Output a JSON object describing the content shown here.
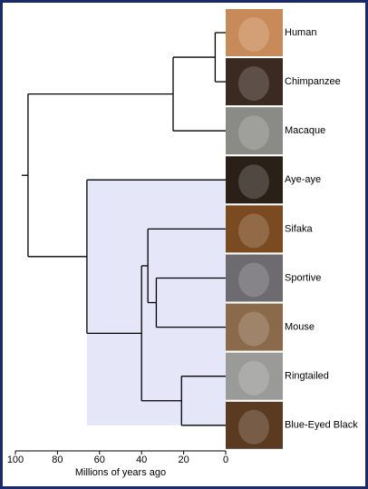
{
  "chart_data": {
    "type": "dendrogram",
    "xlabel": "Millions of years ago",
    "xlim": [
      100,
      0
    ],
    "xticks": [
      100,
      80,
      60,
      40,
      20,
      0
    ],
    "tree": {
      "age": 94,
      "children": [
        {
          "age": 25,
          "children": [
            {
              "age": 5,
              "children": [
                {
                  "name": "Human"
                },
                {
                  "name": "Chimpanzee"
                }
              ]
            },
            {
              "name": "Macaque"
            }
          ]
        },
        {
          "age": 66,
          "shade": "#e5e7f8",
          "children": [
            {
              "name": "Aye-aye"
            },
            {
              "age": 40,
              "children": [
                {
                  "age": 37,
                  "children": [
                    {
                      "name": "Sifaka"
                    },
                    {
                      "age": 33,
                      "children": [
                        {
                          "name": "Sportive"
                        },
                        {
                          "name": "Mouse"
                        }
                      ]
                    }
                  ]
                },
                {
                  "age": 21,
                  "children": [
                    {
                      "name": "Ringtailed"
                    },
                    {
                      "name": "Blue-Eyed Black"
                    }
                  ]
                }
              ]
            }
          ]
        }
      ]
    }
  }
}
